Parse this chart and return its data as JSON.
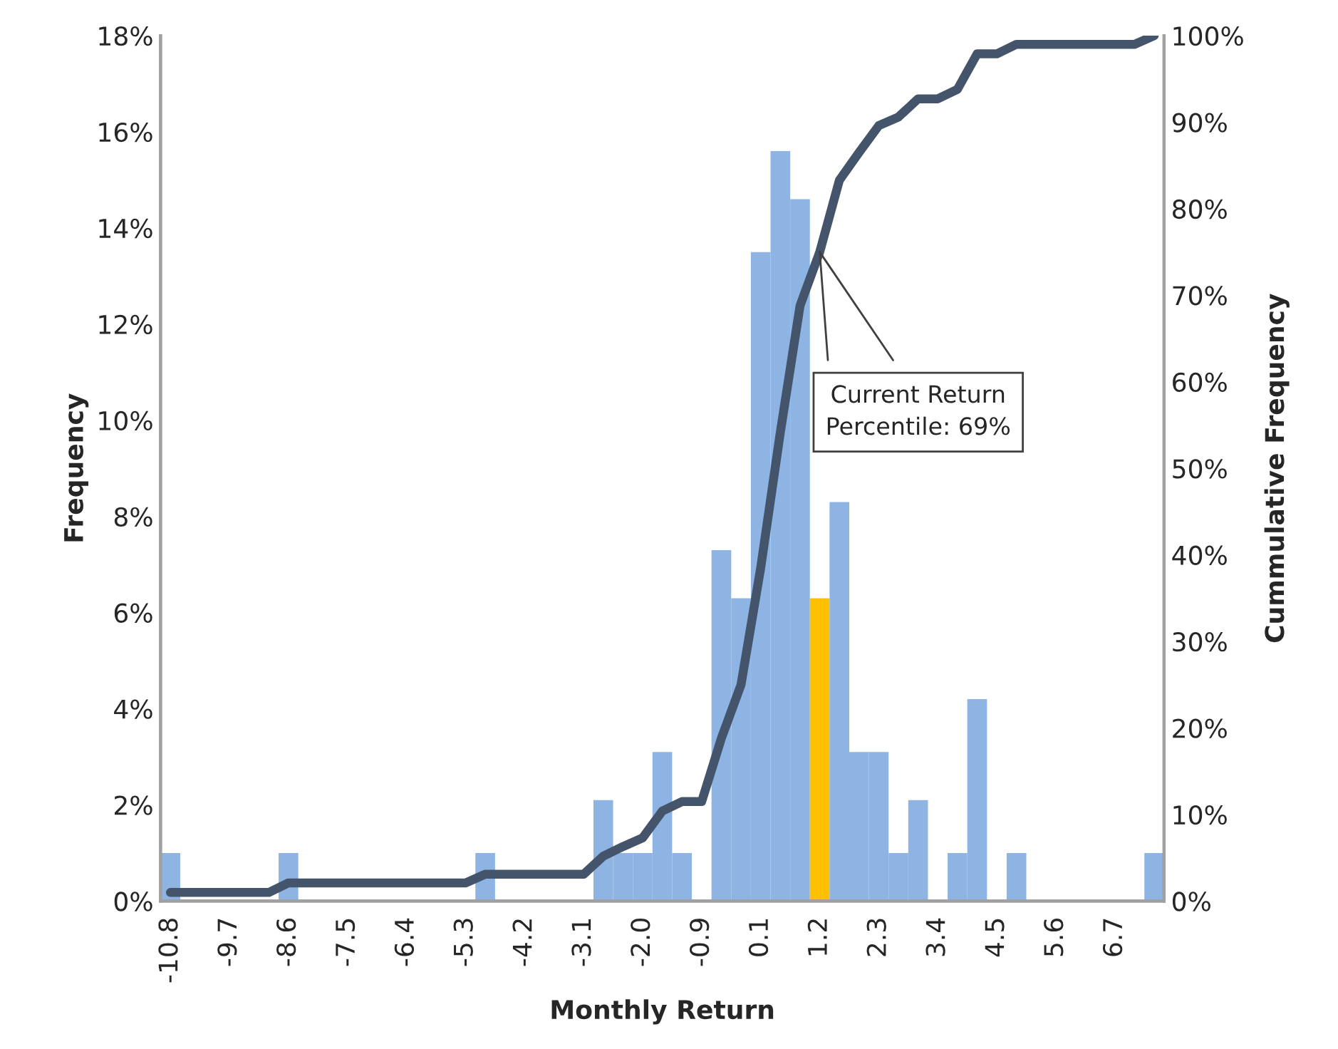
{
  "chart_data": {
    "type": "bar",
    "xlabel": "Monthly Return",
    "ylabel": "Frequency",
    "y2label": "Cummulative Frequency",
    "categories": [
      "-10.8",
      null,
      null,
      "-9.7",
      null,
      null,
      "-8.6",
      null,
      null,
      "-7.5",
      null,
      null,
      "-6.4",
      null,
      null,
      "-5.3",
      null,
      null,
      "-4.2",
      null,
      null,
      "-3.1",
      null,
      null,
      "-2.0",
      null,
      null,
      "-0.9",
      null,
      null,
      "0.1",
      null,
      null,
      "1.2",
      null,
      null,
      "2.3",
      null,
      null,
      "3.4",
      null,
      null,
      "4.5",
      null,
      null,
      "5.6",
      null,
      null,
      "6.7",
      null,
      null
    ],
    "series": [
      {
        "color": "#8eb4e3",
        "colors": [
          "#8eb4e3",
          "#8eb4e3",
          "#8eb4e3",
          "#8eb4e3",
          "#8eb4e3",
          "#8eb4e3",
          "#8eb4e3",
          "#8eb4e3",
          "#8eb4e3",
          "#8eb4e3",
          "#8eb4e3",
          "#8eb4e3",
          "#8eb4e3",
          "#8eb4e3",
          "#8eb4e3",
          "#8eb4e3",
          "#8eb4e3",
          "#8eb4e3",
          "#8eb4e3",
          "#8eb4e3",
          "#8eb4e3",
          "#8eb4e3",
          "#8eb4e3",
          "#8eb4e3",
          "#8eb4e3",
          "#8eb4e3",
          "#8eb4e3",
          "#8eb4e3",
          "#8eb4e3",
          "#8eb4e3",
          "#8eb4e3",
          "#8eb4e3",
          "#8eb4e3",
          "#ffc000",
          "#8eb4e3",
          "#8eb4e3",
          "#8eb4e3",
          "#8eb4e3",
          "#8eb4e3",
          "#8eb4e3",
          "#8eb4e3",
          "#8eb4e3",
          "#8eb4e3",
          "#8eb4e3",
          "#8eb4e3",
          "#8eb4e3",
          "#8eb4e3",
          "#8eb4e3",
          "#8eb4e3",
          "#8eb4e3",
          "#8eb4e3"
        ],
        "values": [
          1.0,
          0,
          0,
          0,
          0,
          0,
          1.0,
          0,
          0,
          0,
          0,
          0,
          0,
          0,
          0,
          0,
          1.0,
          0,
          0,
          0,
          0,
          0,
          2.1,
          1.0,
          1.0,
          3.1,
          1.0,
          0,
          7.3,
          6.3,
          13.5,
          15.6,
          14.6,
          6.3,
          8.3,
          3.1,
          3.1,
          1.0,
          2.1,
          0,
          1.0,
          4.2,
          0,
          1.0,
          0,
          0,
          0,
          0,
          0,
          0,
          1.0
        ]
      },
      {
        "type": "line",
        "axis": "y2",
        "color": "#44546a",
        "values": [
          1.0,
          1.0,
          1.0,
          1.0,
          1.0,
          1.0,
          2.1,
          2.1,
          2.1,
          2.1,
          2.1,
          2.1,
          2.1,
          2.1,
          2.1,
          2.1,
          3.1,
          3.1,
          3.1,
          3.1,
          3.1,
          3.1,
          5.2,
          6.3,
          7.3,
          10.4,
          11.5,
          11.5,
          18.8,
          25.0,
          38.5,
          54.2,
          68.8,
          75.0,
          83.3,
          86.5,
          89.6,
          90.6,
          92.7,
          92.7,
          93.8,
          97.9,
          97.9,
          99.0,
          99.0,
          99.0,
          99.0,
          99.0,
          99.0,
          99.0,
          100
        ]
      }
    ],
    "ylim": [
      0,
      18
    ],
    "yticks": [
      {
        "value": 0,
        "label": "0%"
      },
      {
        "value": 2,
        "label": "2%"
      },
      {
        "value": 4,
        "label": "4%"
      },
      {
        "value": 6,
        "label": "6%"
      },
      {
        "value": 8,
        "label": "8%"
      },
      {
        "value": 10,
        "label": "10%"
      },
      {
        "value": 12,
        "label": "12%"
      },
      {
        "value": 14,
        "label": "14%"
      },
      {
        "value": 16,
        "label": "16%"
      },
      {
        "value": 18,
        "label": "18%"
      }
    ],
    "y2lim": [
      0,
      100
    ],
    "y2ticks": [
      {
        "value": 0,
        "label": "0%"
      },
      {
        "value": 10,
        "label": "10%"
      },
      {
        "value": 20,
        "label": "20%"
      },
      {
        "value": 30,
        "label": "30%"
      },
      {
        "value": 40,
        "label": "40%"
      },
      {
        "value": 50,
        "label": "50%"
      },
      {
        "value": 60,
        "label": "60%"
      },
      {
        "value": 70,
        "label": "70%"
      },
      {
        "value": 80,
        "label": "80%"
      },
      {
        "value": 90,
        "label": "90%"
      },
      {
        "value": 100,
        "label": "100%"
      }
    ],
    "annotations": [
      {
        "text": "Current Return\nPercentile: 69%",
        "x": "1.2",
        "y": 13.5
      }
    ],
    "grid": false,
    "legend": false,
    "marker": "none",
    "line_style": "solid"
  }
}
